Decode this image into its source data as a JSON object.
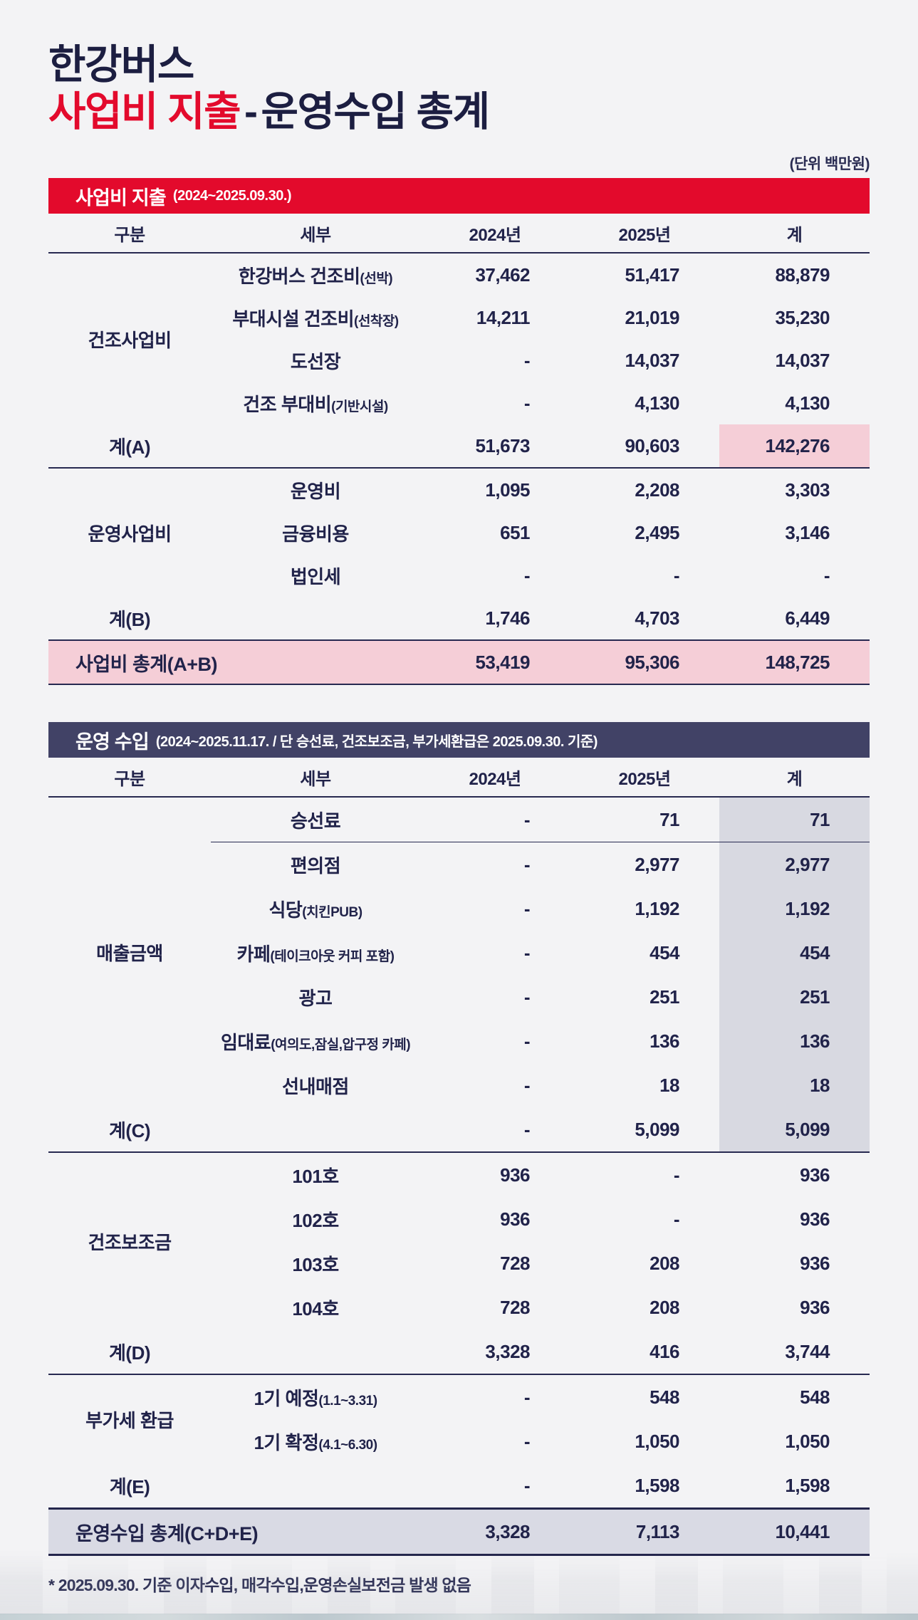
{
  "title": {
    "line1": "한강버스",
    "line2_highlight": "사업비 지출",
    "line2_separator": "-",
    "line2_rest": "운영수입 총계"
  },
  "unit_label": "(단위 백만원)",
  "footnote": "* 2025.09.30. 기준 이자수입, 매각수입,운영손실보전금 발생 없음",
  "colors": {
    "accent_red": "#e30a2c",
    "header_navy": "#414266",
    "text_navy": "#21234a",
    "highlight_pink": "#f5ced7",
    "highlight_lavender": "#d8d9e1",
    "background": "#f3f3f5"
  },
  "expense_table": {
    "section_title": "사업비 지출",
    "section_period": "(2024~2025.09.30.)",
    "columns": {
      "group": "구분",
      "detail": "세부",
      "y2024": "2024년",
      "y2025": "2025년",
      "total": "계"
    },
    "groups": {
      "construction": "건조사업비",
      "operation": "운영사업비"
    },
    "rows": {
      "ship": {
        "detail": "한강버스 건조비",
        "detail_note": "(선박)",
        "y2024": "37,462",
        "y2025": "51,417",
        "total": "88,879"
      },
      "dock": {
        "detail": "부대시설 건조비",
        "detail_note": "(선착장)",
        "y2024": "14,211",
        "y2025": "21,019",
        "total": "35,230"
      },
      "pier": {
        "detail": "도선장",
        "y2024": "-",
        "y2025": "14,037",
        "total": "14,037"
      },
      "incidental": {
        "detail": "건조 부대비",
        "detail_note": "(기반시설)",
        "y2024": "-",
        "y2025": "4,130",
        "total": "4,130"
      },
      "sum_a": {
        "label": "계(A)",
        "y2024": "51,673",
        "y2025": "90,603",
        "total": "142,276"
      },
      "opex": {
        "detail": "운영비",
        "y2024": "1,095",
        "y2025": "2,208",
        "total": "3,303"
      },
      "finance": {
        "detail": "금융비용",
        "y2024": "651",
        "y2025": "2,495",
        "total": "3,146"
      },
      "tax": {
        "detail": "법인세",
        "y2024": "-",
        "y2025": "-",
        "total": "-"
      },
      "sum_b": {
        "label": "계(B)",
        "y2024": "1,746",
        "y2025": "4,703",
        "total": "6,449"
      },
      "grand": {
        "label": "사업비 총계(A+B)",
        "y2024": "53,419",
        "y2025": "95,306",
        "total": "148,725"
      }
    }
  },
  "income_table": {
    "section_title": "운영 수입",
    "section_period": "(2024~2025.11.17. / 단 승선료, 건조보조금, 부가세환급은 2025.09.30. 기준)",
    "columns": {
      "group": "구분",
      "detail": "세부",
      "y2024": "2024년",
      "y2025": "2025년",
      "total": "계"
    },
    "groups": {
      "sales": "매출금액",
      "subsidy": "건조보조금",
      "vat": "부가세 환급"
    },
    "rows": {
      "fare": {
        "detail": "승선료",
        "y2024": "-",
        "y2025": "71",
        "total": "71"
      },
      "convenience": {
        "detail": "편의점",
        "y2024": "-",
        "y2025": "2,977",
        "total": "2,977"
      },
      "restaurant": {
        "detail": "식당",
        "detail_note": "(치킨PUB)",
        "y2024": "-",
        "y2025": "1,192",
        "total": "1,192"
      },
      "cafe": {
        "detail": "카페",
        "detail_note": "(테이크아웃 커피 포함)",
        "y2024": "-",
        "y2025": "454",
        "total": "454"
      },
      "ads": {
        "detail": "광고",
        "y2024": "-",
        "y2025": "251",
        "total": "251"
      },
      "rent": {
        "detail": "임대료",
        "detail_note": "(여의도,잠실,압구정 카페)",
        "y2024": "-",
        "y2025": "136",
        "total": "136"
      },
      "shop": {
        "detail": "선내매점",
        "y2024": "-",
        "y2025": "18",
        "total": "18"
      },
      "sum_c": {
        "label": "계(C)",
        "y2024": "-",
        "y2025": "5,099",
        "total": "5,099"
      },
      "ship101": {
        "detail": "101호",
        "y2024": "936",
        "y2025": "-",
        "total": "936"
      },
      "ship102": {
        "detail": "102호",
        "y2024": "936",
        "y2025": "-",
        "total": "936"
      },
      "ship103": {
        "detail": "103호",
        "y2024": "728",
        "y2025": "208",
        "total": "936"
      },
      "ship104": {
        "detail": "104호",
        "y2024": "728",
        "y2025": "208",
        "total": "936"
      },
      "sum_d": {
        "label": "계(D)",
        "y2024": "3,328",
        "y2025": "416",
        "total": "3,744"
      },
      "vat_interim": {
        "detail": "1기 예정",
        "detail_note": "(1.1~3.31)",
        "y2024": "-",
        "y2025": "548",
        "total": "548"
      },
      "vat_final": {
        "detail": "1기 확정",
        "detail_note": "(4.1~6.30)",
        "y2024": "-",
        "y2025": "1,050",
        "total": "1,050"
      },
      "sum_e": {
        "label": "계(E)",
        "y2024": "-",
        "y2025": "1,598",
        "total": "1,598"
      },
      "grand": {
        "label": "운영수입 총계(C+D+E)",
        "y2024": "3,328",
        "y2025": "7,113",
        "total": "10,441"
      }
    }
  }
}
